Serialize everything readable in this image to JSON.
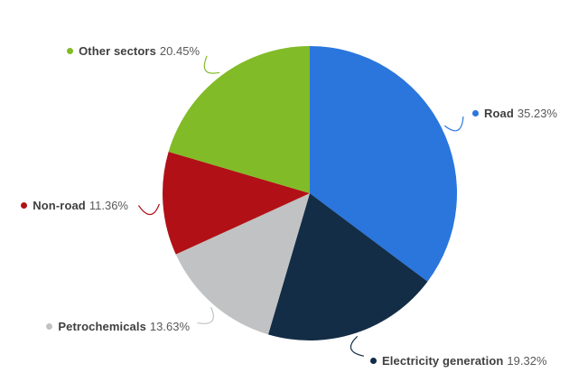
{
  "chart_data": {
    "type": "pie",
    "title": "",
    "slices": [
      {
        "label": "Road",
        "value": 35.23,
        "display": "35.23%",
        "color": "#2a76dd"
      },
      {
        "label": "Electricity generation",
        "value": 19.32,
        "display": "19.32%",
        "color": "#132d46"
      },
      {
        "label": "Petrochemicals",
        "value": 13.63,
        "display": "13.63%",
        "color": "#c1c2c3"
      },
      {
        "label": "Non-road",
        "value": 11.36,
        "display": "11.36%",
        "color": "#b11116"
      },
      {
        "label": "Other sectors",
        "value": 20.45,
        "display": "20.45%",
        "color": "#81bb27"
      }
    ],
    "start_angle_deg": 0,
    "direction": "clockwise",
    "legend_position": "outside-callout-labels",
    "background_color": "#ffffff",
    "label_name_color": "#3f3f41",
    "label_value_color": "#59595c"
  }
}
